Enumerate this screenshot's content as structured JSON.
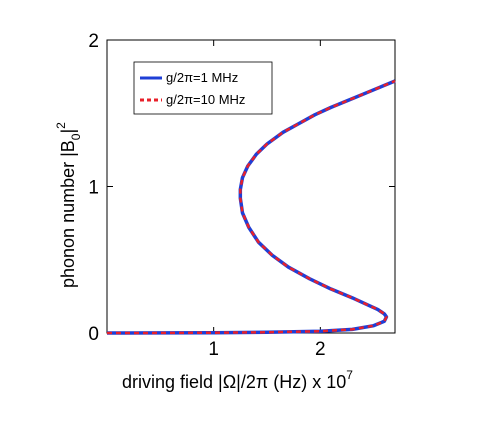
{
  "chart_data": {
    "type": "line",
    "title": "",
    "xlabel": "driving field |Ω|/2π (Hz) x 10",
    "xlabel_exponent": "7",
    "ylabel": "phonon number  |B",
    "ylabel_subscript": "0",
    "ylabel_end": "|",
    "ylabel_superscript": "2",
    "xlim": [
      0,
      2.7
    ],
    "ylim": [
      0,
      2
    ],
    "xticks": [
      1,
      2
    ],
    "xtick_labels": [
      "1",
      "2"
    ],
    "yticks": [
      0,
      1,
      2
    ],
    "ytick_labels": [
      "0",
      "1",
      "2"
    ],
    "grid": false,
    "legend_position": "top-left",
    "series": [
      {
        "name": "g/2π=1 MHz",
        "color": "#1f3fd6",
        "style": "solid",
        "points": [
          [
            0.0,
            0.0
          ],
          [
            0.5,
            0.0005
          ],
          [
            1.0,
            0.002
          ],
          [
            1.5,
            0.005
          ],
          [
            2.0,
            0.012
          ],
          [
            2.3,
            0.025
          ],
          [
            2.5,
            0.05
          ],
          [
            2.6,
            0.08
          ],
          [
            2.62,
            0.11
          ],
          [
            2.6,
            0.13
          ],
          [
            2.54,
            0.16
          ],
          [
            2.45,
            0.19
          ],
          [
            2.3,
            0.24
          ],
          [
            2.1,
            0.3
          ],
          [
            1.9,
            0.37
          ],
          [
            1.7,
            0.45
          ],
          [
            1.55,
            0.53
          ],
          [
            1.42,
            0.62
          ],
          [
            1.33,
            0.72
          ],
          [
            1.27,
            0.82
          ],
          [
            1.25,
            0.92
          ],
          [
            1.25,
            0.98
          ],
          [
            1.27,
            1.06
          ],
          [
            1.32,
            1.14
          ],
          [
            1.4,
            1.22
          ],
          [
            1.5,
            1.29
          ],
          [
            1.65,
            1.37
          ],
          [
            1.8,
            1.43
          ],
          [
            1.95,
            1.49
          ],
          [
            2.1,
            1.54
          ],
          [
            2.3,
            1.6
          ],
          [
            2.5,
            1.66
          ],
          [
            2.7,
            1.72
          ]
        ]
      },
      {
        "name": "g/2π=10 MHz",
        "color": "#e8202a",
        "style": "dashed",
        "points": [
          [
            0.0,
            0.0
          ],
          [
            0.5,
            0.0005
          ],
          [
            1.0,
            0.002
          ],
          [
            1.5,
            0.005
          ],
          [
            2.0,
            0.012
          ],
          [
            2.3,
            0.025
          ],
          [
            2.5,
            0.05
          ],
          [
            2.6,
            0.08
          ],
          [
            2.62,
            0.11
          ],
          [
            2.6,
            0.13
          ],
          [
            2.54,
            0.16
          ],
          [
            2.45,
            0.19
          ],
          [
            2.3,
            0.24
          ],
          [
            2.1,
            0.3
          ],
          [
            1.9,
            0.37
          ],
          [
            1.7,
            0.45
          ],
          [
            1.55,
            0.53
          ],
          [
            1.42,
            0.62
          ],
          [
            1.33,
            0.72
          ],
          [
            1.27,
            0.82
          ],
          [
            1.25,
            0.92
          ],
          [
            1.25,
            0.98
          ],
          [
            1.27,
            1.06
          ],
          [
            1.32,
            1.14
          ],
          [
            1.4,
            1.22
          ],
          [
            1.5,
            1.29
          ],
          [
            1.65,
            1.37
          ],
          [
            1.8,
            1.43
          ],
          [
            1.95,
            1.49
          ],
          [
            2.1,
            1.54
          ],
          [
            2.3,
            1.6
          ],
          [
            2.5,
            1.66
          ],
          [
            2.7,
            1.72
          ]
        ]
      }
    ]
  }
}
